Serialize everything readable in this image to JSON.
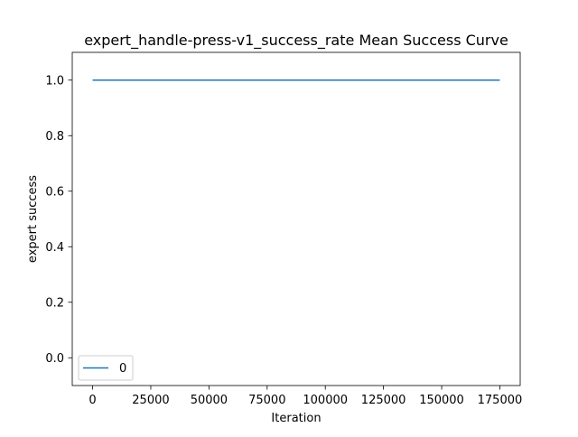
{
  "chart_data": {
    "type": "line",
    "title": "expert_handle-press-v1_success_rate Mean Success Curve",
    "xlabel": "Iteration",
    "ylabel": "expert success",
    "xlim": [
      -8750,
      183750
    ],
    "ylim": [
      -0.1,
      1.1
    ],
    "xticks": [
      0,
      25000,
      50000,
      75000,
      100000,
      125000,
      150000,
      175000
    ],
    "xtick_labels": [
      "0",
      "25000",
      "50000",
      "75000",
      "100000",
      "125000",
      "150000",
      "175000"
    ],
    "yticks": [
      0.0,
      0.2,
      0.4,
      0.6,
      0.8,
      1.0
    ],
    "ytick_labels": [
      "0.0",
      "0.2",
      "0.4",
      "0.6",
      "0.8",
      "1.0"
    ],
    "grid": false,
    "legend_position": "lower-left",
    "series": [
      {
        "name": "0",
        "color": "#1f77b4",
        "x": [
          0,
          175000
        ],
        "y": [
          1.0,
          1.0
        ]
      }
    ]
  }
}
